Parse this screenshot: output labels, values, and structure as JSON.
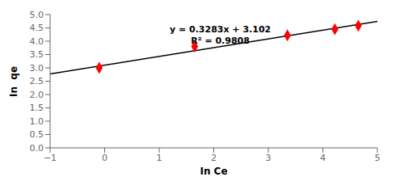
{
  "chart_data": {
    "type": "scatter",
    "xlabel": "In Ce",
    "ylabel": "In  qe",
    "annotations": [
      "y = 0.3283x + 3.102",
      "R² = 0.9808"
    ],
    "series": [
      {
        "type": "line",
        "color": "#000000",
        "x": [
          -1,
          5
        ],
        "values": [
          2.7737,
          4.7435
        ]
      },
      {
        "type": "scatter",
        "color": "#FF0000",
        "marker": "diamond",
        "x": [
          -0.1,
          1.65,
          3.35,
          4.22,
          4.65
        ],
        "values": [
          3.0,
          3.8,
          4.22,
          4.45,
          4.58
        ]
      }
    ],
    "xlim": [
      -1,
      5
    ],
    "ylim": [
      0,
      5
    ],
    "xticks": [
      {
        "value": -1,
        "label": "−1"
      },
      0,
      1,
      2,
      3,
      4,
      5
    ],
    "yticks": [
      {
        "value": 0,
        "label": "0.0"
      },
      0.5,
      {
        "value": 1,
        "label": "1.0"
      },
      1.5,
      {
        "value": 2,
        "label": "2.0"
      },
      2.5,
      {
        "value": 3,
        "label": "3.0"
      },
      3.5,
      {
        "value": 4,
        "label": "4.0"
      },
      4.5,
      {
        "value": 5,
        "label": "5.0"
      }
    ],
    "grid": false
  }
}
